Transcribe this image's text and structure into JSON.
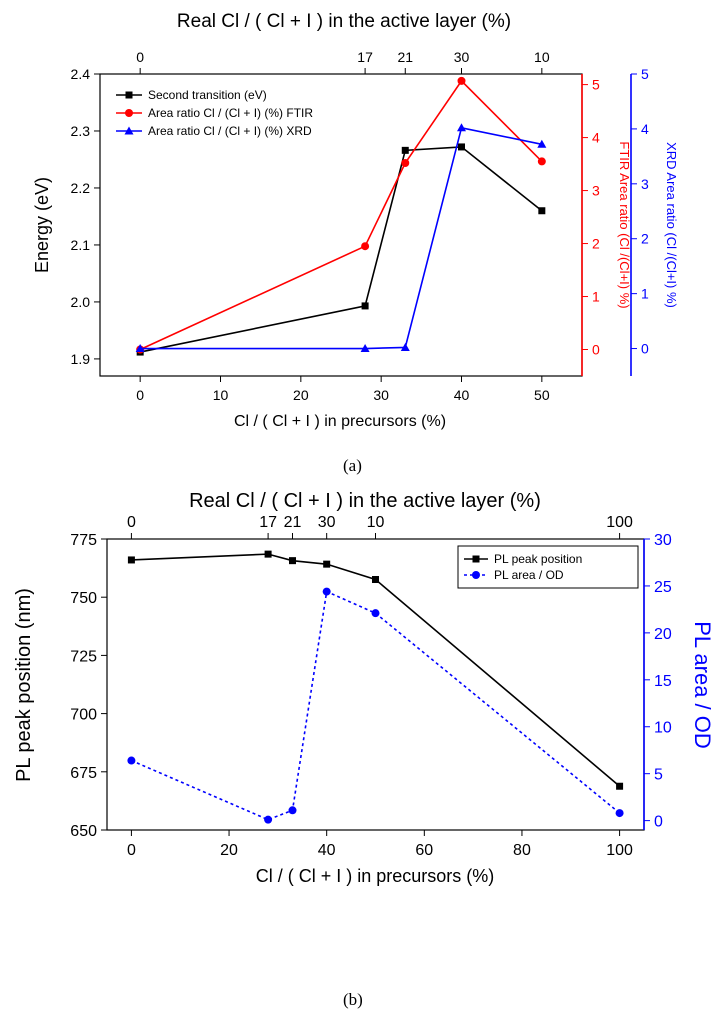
{
  "figure": {
    "panel_a_caption": "(a)",
    "panel_b_caption": "(b)"
  },
  "colors": {
    "black_series": "#000000",
    "red_series": "#ff0000",
    "blue_series": "#0000ff"
  },
  "chart_data": [
    {
      "type": "line",
      "panel": "a",
      "top_axis_label": "Real Cl / ( Cl + I ) in the active layer (%)",
      "top_ticks": [
        {
          "x": 0,
          "label": "0"
        },
        {
          "x": 28,
          "label": "17"
        },
        {
          "x": 33,
          "label": "21"
        },
        {
          "x": 40,
          "label": "30"
        },
        {
          "x": 50,
          "label": "10"
        }
      ],
      "xlabel": "Cl / ( Cl + I ) in precursors (%)",
      "xlim": [
        -5,
        55
      ],
      "xticks": [
        0,
        10,
        20,
        30,
        40,
        50
      ],
      "ylabel": "Energy (eV)",
      "ylim": [
        1.87,
        2.4
      ],
      "yticks": [
        1.9,
        2.0,
        2.1,
        2.2,
        2.3,
        2.4
      ],
      "y2label": "FTIR Area ratio (Cl /(Cl+I) %)",
      "y2lim": [
        -0.5,
        5.2
      ],
      "y2ticks": [
        0,
        1,
        2,
        3,
        4,
        5
      ],
      "y3label": "XRD Area ratio (Cl /(Cl+I) %)",
      "y3lim": [
        -0.5,
        5.0
      ],
      "y3ticks": [
        0,
        1,
        2,
        3,
        4,
        5
      ],
      "legend_position": "top-left",
      "series": [
        {
          "name": "Second transition (eV)",
          "axis": "left",
          "color": "#000000",
          "marker": "square",
          "x": [
            0,
            28,
            33,
            40,
            50
          ],
          "y": [
            1.912,
            1.993,
            2.266,
            2.272,
            2.16
          ]
        },
        {
          "name": "Area ratio Cl / (Cl + I) (%) FTIR",
          "axis": "right1",
          "color": "#ff0000",
          "marker": "circle",
          "x": [
            0,
            28,
            33,
            40,
            50
          ],
          "y": [
            0.0,
            1.95,
            3.52,
            5.07,
            3.55
          ]
        },
        {
          "name": "Area ratio Cl / (Cl + I) (%) XRD",
          "axis": "right2",
          "color": "#0000ff",
          "marker": "triangle",
          "x": [
            0,
            28,
            33,
            40,
            50
          ],
          "y": [
            0.0,
            0.0,
            0.02,
            4.02,
            3.72
          ]
        }
      ]
    },
    {
      "type": "line",
      "panel": "b",
      "top_axis_label": "Real Cl / ( Cl + I ) in the active layer (%)",
      "top_ticks": [
        {
          "x": 0,
          "label": "0"
        },
        {
          "x": 28,
          "label": "17"
        },
        {
          "x": 33,
          "label": "21"
        },
        {
          "x": 40,
          "label": "30"
        },
        {
          "x": 50,
          "label": "10"
        },
        {
          "x": 100,
          "label": "100"
        }
      ],
      "xlabel": "Cl / ( Cl + I ) in precursors (%)",
      "xlim": [
        -5,
        105
      ],
      "xticks": [
        0,
        20,
        40,
        60,
        80,
        100
      ],
      "ylabel": "PL peak position (nm)",
      "ylim": [
        650,
        775
      ],
      "yticks": [
        650,
        675,
        700,
        725,
        750,
        775
      ],
      "y2label": "PL area / OD",
      "y2lim": [
        -1,
        30
      ],
      "y2ticks": [
        0,
        5,
        10,
        15,
        20,
        25,
        30
      ],
      "legend_position": "top-right",
      "series": [
        {
          "name": "PL peak position",
          "axis": "left",
          "color": "#000000",
          "marker": "square",
          "dash": "solid",
          "x": [
            0,
            28,
            33,
            40,
            50,
            100
          ],
          "y": [
            766,
            768.5,
            765.7,
            764.2,
            757.6,
            668.8
          ]
        },
        {
          "name": "PL area / OD",
          "axis": "right1",
          "color": "#0000ff",
          "marker": "circle",
          "dash": "dotted",
          "x": [
            0,
            28,
            33,
            40,
            50,
            100
          ],
          "y": [
            6.4,
            0.1,
            1.1,
            24.4,
            22.1,
            0.8
          ]
        }
      ]
    }
  ]
}
